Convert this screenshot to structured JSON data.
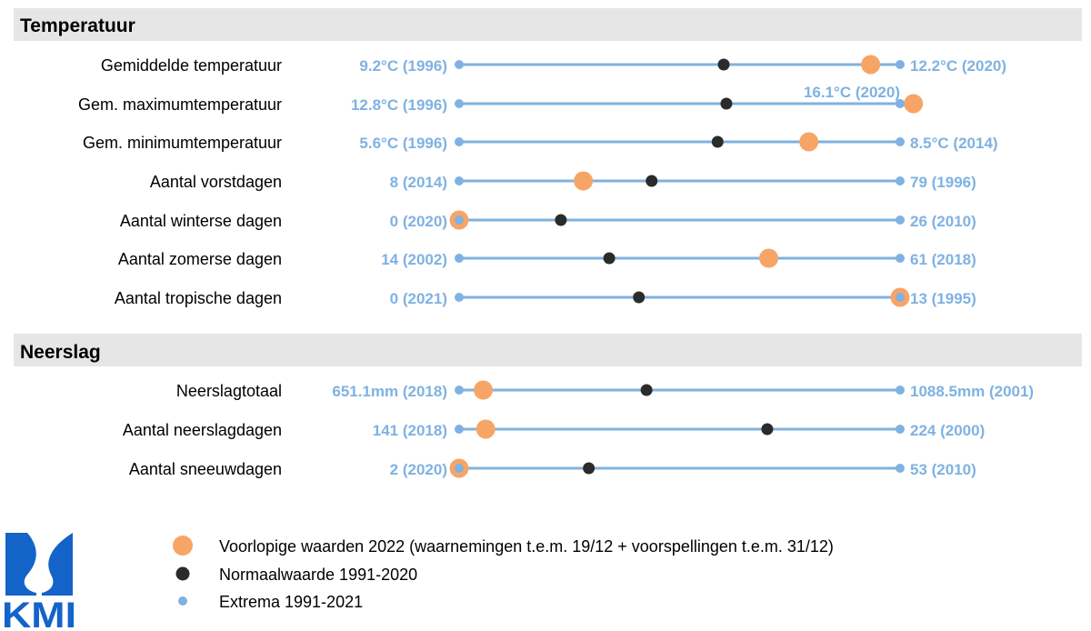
{
  "colors": {
    "range_line": "#7fb2e2",
    "extreme": "#7fb2e2",
    "normal": "#2b2b2b",
    "provisional": "#f7a566",
    "section_bg": "#e6e6e6",
    "logo": "#1463c8"
  },
  "logo": {
    "text": "KMI",
    "icon": "kmi-wave-logo"
  },
  "legend": [
    {
      "key": "provisional",
      "label": "Voorlopige waarden 2022 (waarnemingen t.e.m. 19/12 + voorspellingen t.e.m. 31/12)"
    },
    {
      "key": "normal",
      "label": "Normaalwaarde 1991-2020"
    },
    {
      "key": "extreme",
      "label": "Extrema 1991-2021"
    }
  ],
  "chart_data": {
    "type": "scatter",
    "scale": "each row normalized between its minimum and maximum extreme (0 = minimum, 1 = maximum)",
    "sections": [
      {
        "title": "Temperatuur",
        "rows": [
          {
            "label": "Gemiddelde temperatuur",
            "min_label": "9.2°C (1996)",
            "max_label": "12.2°C (2020)",
            "min": 9.2,
            "max": 12.2,
            "normal": 11.0,
            "provisional": 12.0,
            "max_label_above": false
          },
          {
            "label": "Gem. maximumtemperatuur",
            "min_label": "12.8°C (1996)",
            "max_label": "16.1°C (2020)",
            "min": 12.8,
            "max": 16.1,
            "normal": 14.8,
            "provisional": 16.2,
            "max_label_above": true
          },
          {
            "label": "Gem. minimumtemperatuur",
            "min_label": "5.6°C (1996)",
            "max_label": "8.5°C (2014)",
            "min": 5.6,
            "max": 8.5,
            "normal": 7.3,
            "provisional": 7.9,
            "max_label_above": false
          },
          {
            "label": "Aantal vorstdagen",
            "min_label": "8 (2014)",
            "max_label": "79 (1996)",
            "min": 8,
            "max": 79,
            "normal": 39,
            "provisional": 28,
            "max_label_above": false
          },
          {
            "label": "Aantal winterse dagen",
            "min_label": "0 (2020)",
            "max_label": "26 (2010)",
            "min": 0,
            "max": 26,
            "normal": 6,
            "provisional": 0,
            "max_label_above": false
          },
          {
            "label": "Aantal zomerse dagen",
            "min_label": "14 (2002)",
            "max_label": "61 (2018)",
            "min": 14,
            "max": 61,
            "normal": 30,
            "provisional": 47,
            "max_label_above": false
          },
          {
            "label": "Aantal tropische dagen",
            "min_label": "0 (2021)",
            "max_label": "13 (1995)",
            "min": 0,
            "max": 13,
            "normal": 5.3,
            "provisional": 13,
            "max_label_above": false
          }
        ]
      },
      {
        "title": "Neerslag",
        "rows": [
          {
            "label": "Neerslagtotaal",
            "min_label": "651.1mm (2018)",
            "max_label": "1088.5mm (2001)",
            "min": 651.1,
            "max": 1088.5,
            "normal": 837,
            "provisional": 675,
            "max_label_above": false
          },
          {
            "label": "Aantal neerslagdagen",
            "min_label": "141 (2018)",
            "max_label": "224 (2000)",
            "min": 141,
            "max": 224,
            "normal": 199,
            "provisional": 146,
            "max_label_above": false
          },
          {
            "label": "Aantal sneeuwdagen",
            "min_label": "2 (2020)",
            "max_label": "53 (2010)",
            "min": 2,
            "max": 53,
            "normal": 17,
            "provisional": 2,
            "max_label_above": false
          }
        ]
      }
    ]
  }
}
